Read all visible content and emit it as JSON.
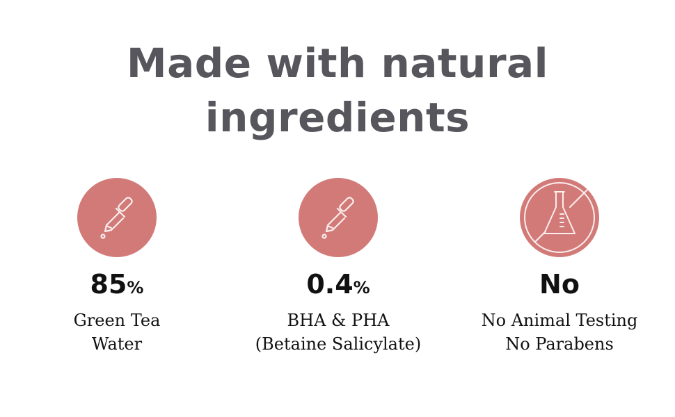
{
  "title": {
    "line1": "Made with natural",
    "line2": "ingredients"
  },
  "accent_color": "#d27a78",
  "features": [
    {
      "icon": "dropper-icon",
      "value": "85",
      "unit": "%",
      "lines": [
        "Green Tea",
        "Water"
      ]
    },
    {
      "icon": "dropper-icon",
      "value": "0.4",
      "unit": "%",
      "lines": [
        "BHA & PHA",
        "(Betaine Salicylate)"
      ]
    },
    {
      "icon": "no-flask-icon",
      "value": "No",
      "unit": "",
      "lines": [
        "No Animal Testing",
        "No Parabens"
      ]
    }
  ]
}
